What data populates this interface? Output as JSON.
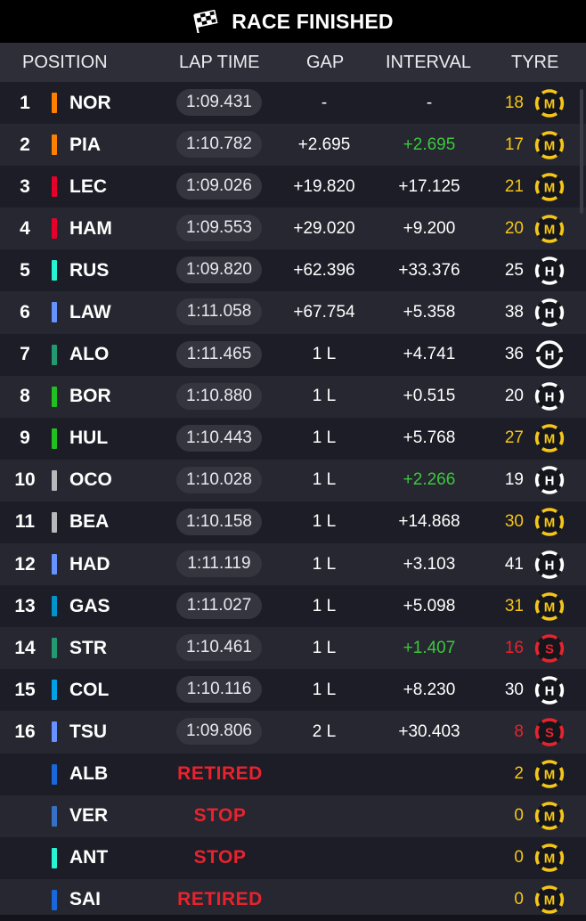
{
  "header": {
    "title": "RACE FINISHED",
    "icon": "checkered-flag-icon"
  },
  "columns": {
    "position": "POSITION",
    "lap_time": "LAP TIME",
    "gap": "GAP",
    "interval": "INTERVAL",
    "tyre": "TYRE"
  },
  "tyre_colors": {
    "M": "#f5c518",
    "H": "#ffffff",
    "S": "#e8232e"
  },
  "text_colors": {
    "green": "#3cc83c",
    "yellow": "#f5c518",
    "red": "#e8232e",
    "white": "#ffffff"
  },
  "rows": [
    {
      "pos": "1",
      "code": "NOR",
      "team_color": "#ff8000",
      "lap": "1:09.431",
      "gap": "-",
      "interval": "-",
      "interval_color": "white",
      "laps": "18",
      "laps_color": "yellow",
      "tyre": "M"
    },
    {
      "pos": "2",
      "code": "PIA",
      "team_color": "#ff8000",
      "lap": "1:10.782",
      "gap": "+2.695",
      "interval": "+2.695",
      "interval_color": "green",
      "laps": "17",
      "laps_color": "yellow",
      "tyre": "M"
    },
    {
      "pos": "3",
      "code": "LEC",
      "team_color": "#e8002d",
      "lap": "1:09.026",
      "gap": "+19.820",
      "interval": "+17.125",
      "interval_color": "white",
      "laps": "21",
      "laps_color": "yellow",
      "tyre": "M"
    },
    {
      "pos": "4",
      "code": "HAM",
      "team_color": "#e8002d",
      "lap": "1:09.553",
      "gap": "+29.020",
      "interval": "+9.200",
      "interval_color": "white",
      "laps": "20",
      "laps_color": "yellow",
      "tyre": "M"
    },
    {
      "pos": "5",
      "code": "RUS",
      "team_color": "#27f4d2",
      "lap": "1:09.820",
      "gap": "+62.396",
      "interval": "+33.376",
      "interval_color": "white",
      "laps": "25",
      "laps_color": "white",
      "tyre": "H"
    },
    {
      "pos": "6",
      "code": "LAW",
      "team_color": "#6692ff",
      "lap": "1:11.058",
      "gap": "+67.754",
      "interval": "+5.358",
      "interval_color": "white",
      "laps": "38",
      "laps_color": "white",
      "tyre": "H"
    },
    {
      "pos": "7",
      "code": "ALO",
      "team_color": "#229971",
      "lap": "1:11.465",
      "gap": "1 L",
      "interval": "+4.741",
      "interval_color": "white",
      "laps": "36",
      "laps_color": "white",
      "tyre": "H",
      "pitting": true
    },
    {
      "pos": "8",
      "code": "BOR",
      "team_color": "#20c020",
      "lap": "1:10.880",
      "gap": "1 L",
      "interval": "+0.515",
      "interval_color": "white",
      "laps": "20",
      "laps_color": "white",
      "tyre": "H"
    },
    {
      "pos": "9",
      "code": "HUL",
      "team_color": "#20c020",
      "lap": "1:10.443",
      "gap": "1 L",
      "interval": "+5.768",
      "interval_color": "white",
      "laps": "27",
      "laps_color": "yellow",
      "tyre": "M"
    },
    {
      "pos": "10",
      "code": "OCO",
      "team_color": "#b6babd",
      "lap": "1:10.028",
      "gap": "1 L",
      "interval": "+2.266",
      "interval_color": "green",
      "laps": "19",
      "laps_color": "white",
      "tyre": "H"
    },
    {
      "pos": "11",
      "code": "BEA",
      "team_color": "#b6babd",
      "lap": "1:10.158",
      "gap": "1 L",
      "interval": "+14.868",
      "interval_color": "white",
      "laps": "30",
      "laps_color": "yellow",
      "tyre": "M"
    },
    {
      "pos": "12",
      "code": "HAD",
      "team_color": "#6692ff",
      "lap": "1:11.119",
      "gap": "1 L",
      "interval": "+3.103",
      "interval_color": "white",
      "laps": "41",
      "laps_color": "white",
      "tyre": "H"
    },
    {
      "pos": "13",
      "code": "GAS",
      "team_color": "#0093cc",
      "lap": "1:11.027",
      "gap": "1 L",
      "interval": "+5.098",
      "interval_color": "white",
      "laps": "31",
      "laps_color": "yellow",
      "tyre": "M"
    },
    {
      "pos": "14",
      "code": "STR",
      "team_color": "#229971",
      "lap": "1:10.461",
      "gap": "1 L",
      "interval": "+1.407",
      "interval_color": "green",
      "laps": "16",
      "laps_color": "red",
      "tyre": "S"
    },
    {
      "pos": "15",
      "code": "COL",
      "team_color": "#00a1e8",
      "lap": "1:10.116",
      "gap": "1 L",
      "interval": "+8.230",
      "interval_color": "white",
      "laps": "30",
      "laps_color": "white",
      "tyre": "H"
    },
    {
      "pos": "16",
      "code": "TSU",
      "team_color": "#6692ff",
      "lap": "1:09.806",
      "gap": "2 L",
      "interval": "+30.403",
      "interval_color": "white",
      "laps": "8",
      "laps_color": "red",
      "tyre": "S"
    },
    {
      "pos": "",
      "code": "ALB",
      "team_color": "#1868db",
      "status": "RETIRED",
      "laps": "2",
      "laps_color": "yellow",
      "tyre": "M"
    },
    {
      "pos": "",
      "code": "VER",
      "team_color": "#3671c6",
      "status": "STOP",
      "laps": "0",
      "laps_color": "yellow",
      "tyre": "M"
    },
    {
      "pos": "",
      "code": "ANT",
      "team_color": "#27f4d2",
      "status": "STOP",
      "laps": "0",
      "laps_color": "yellow",
      "tyre": "M"
    },
    {
      "pos": "",
      "code": "SAI",
      "team_color": "#1868db",
      "status": "RETIRED",
      "laps": "0",
      "laps_color": "yellow",
      "tyre": "M"
    }
  ]
}
